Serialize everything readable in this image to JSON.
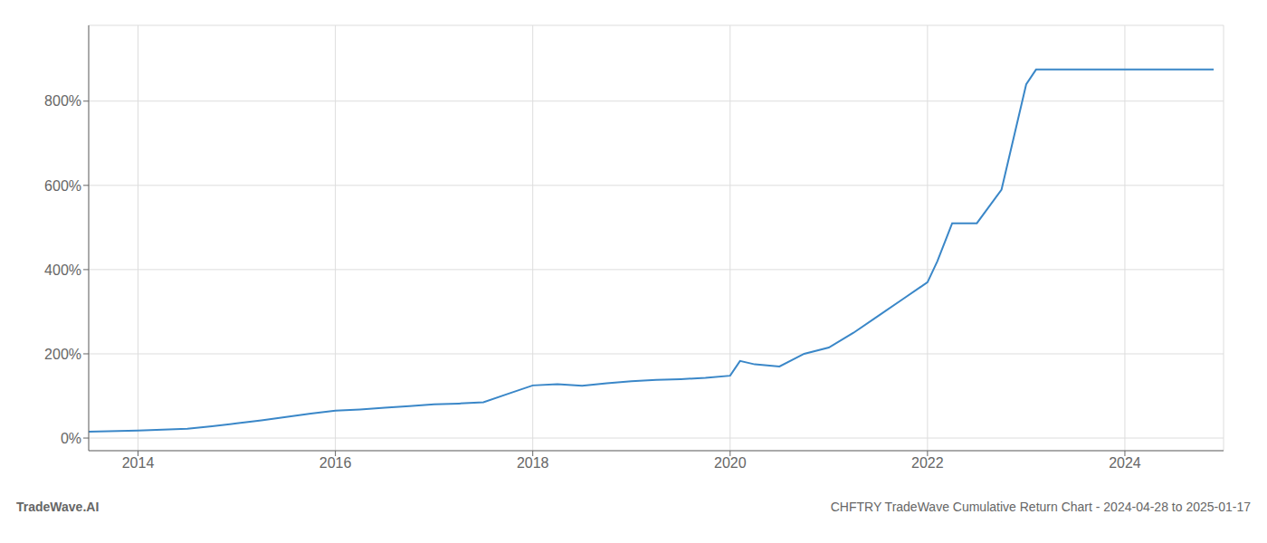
{
  "chart_data": {
    "type": "line",
    "title": "CHFTRY TradeWave Cumulative Return Chart - 2024-04-28 to 2025-01-17",
    "annotations": [
      "TradeWave.AI"
    ],
    "color": "#3a87c8",
    "grid": true,
    "x": [
      2013.5,
      2014.0,
      2014.25,
      2014.5,
      2014.75,
      2015.0,
      2015.25,
      2015.5,
      2015.75,
      2016.0,
      2016.25,
      2016.5,
      2016.75,
      2017.0,
      2017.25,
      2017.5,
      2017.75,
      2018.0,
      2018.25,
      2018.5,
      2018.75,
      2019.0,
      2019.25,
      2019.5,
      2019.75,
      2020.0,
      2020.1,
      2020.25,
      2020.5,
      2020.75,
      2021.0,
      2021.25,
      2021.5,
      2021.75,
      2022.0,
      2022.1,
      2022.25,
      2022.5,
      2022.75,
      2023.0,
      2023.1,
      2023.25,
      2023.5,
      2023.75,
      2024.0,
      2024.25,
      2024.5,
      2024.75,
      2024.9
    ],
    "values": [
      15,
      18,
      20,
      22,
      28,
      35,
      42,
      50,
      58,
      65,
      68,
      72,
      76,
      80,
      82,
      85,
      105,
      125,
      128,
      124,
      130,
      135,
      138,
      140,
      143,
      148,
      183,
      175,
      170,
      200,
      215,
      250,
      290,
      330,
      370,
      420,
      510,
      510,
      590,
      840,
      875,
      875,
      875,
      875,
      875,
      875,
      875,
      875,
      875
    ],
    "xlim": [
      2013.5,
      2025.0
    ],
    "xticks": [
      2014,
      2016,
      2018,
      2020,
      2022,
      2024
    ],
    "ylim": [
      -30,
      980
    ],
    "yticks": [
      {
        "value": 0,
        "label": "0%"
      },
      {
        "value": 200,
        "label": "200%"
      },
      {
        "value": 400,
        "label": "400%"
      },
      {
        "value": 600,
        "label": "600%"
      },
      {
        "value": 800,
        "label": "800%"
      }
    ]
  }
}
